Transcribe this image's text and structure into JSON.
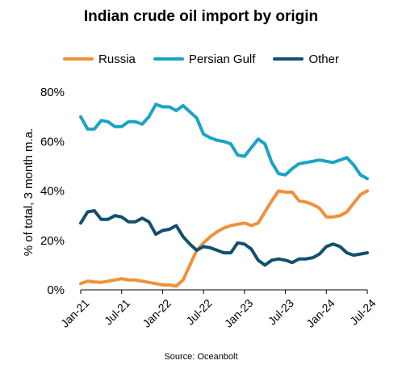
{
  "chart_data": {
    "type": "line",
    "title": "Indian crude oil import by origin",
    "ylabel": "% of total, 3 month m.a.",
    "xlabel": "",
    "source": "Source: Oceanbolt",
    "ylim": [
      0,
      80
    ],
    "yticks": [
      "0%",
      "20%",
      "40%",
      "60%",
      "80%"
    ],
    "ytick_values": [
      0,
      20,
      40,
      60,
      80
    ],
    "xticks": [
      "Jan-21",
      "Jul-21",
      "Jan-22",
      "Jul-22",
      "Jan-23",
      "Jul-23",
      "Jan-24",
      "Jul-24"
    ],
    "x_start": "Jan-21",
    "x_end": "Aug-24",
    "legend_position": "top",
    "grid": false,
    "series": [
      {
        "name": "Russia",
        "color": "#f0913a",
        "values": [
          2.5,
          3.5,
          3.2,
          3.0,
          3.5,
          4.0,
          4.5,
          4.0,
          4.0,
          3.5,
          3.0,
          2.5,
          2.0,
          2.0,
          1.5,
          4.0,
          10.0,
          16.0,
          19.0,
          21.5,
          23.5,
          25.0,
          26.0,
          26.5,
          27.0,
          26.0,
          27.0,
          31.5,
          36.0,
          40.0,
          39.5,
          39.5,
          36.0,
          35.5,
          34.5,
          33.0,
          29.5,
          29.5,
          30.0,
          31.5,
          35.0,
          38.5,
          40.0
        ]
      },
      {
        "name": "Persian Gulf",
        "color": "#1ba3c6",
        "values": [
          70.0,
          65.0,
          65.0,
          68.5,
          68.0,
          66.0,
          66.0,
          68.0,
          68.0,
          67.0,
          70.0,
          75.0,
          74.0,
          74.0,
          72.5,
          74.5,
          72.0,
          69.5,
          63.0,
          61.5,
          60.5,
          60.0,
          59.0,
          54.5,
          54.0,
          57.5,
          61.0,
          59.0,
          51.5,
          47.0,
          46.5,
          49.0,
          51.0,
          51.5,
          52.0,
          52.5,
          52.0,
          51.5,
          52.5,
          53.5,
          50.5,
          46.5,
          45.0
        ]
      },
      {
        "name": "Other",
        "color": "#12506f",
        "values": [
          27.0,
          31.5,
          32.0,
          28.5,
          28.5,
          30.0,
          29.5,
          27.5,
          27.5,
          29.0,
          27.5,
          22.5,
          24.0,
          24.5,
          26.0,
          21.5,
          18.5,
          16.0,
          17.5,
          17.0,
          16.0,
          15.0,
          15.0,
          19.0,
          18.5,
          16.5,
          12.0,
          10.0,
          12.0,
          12.5,
          12.0,
          11.0,
          12.5,
          12.5,
          13.0,
          14.5,
          17.5,
          18.5,
          17.5,
          15.0,
          14.0,
          14.5,
          15.0
        ]
      }
    ]
  }
}
